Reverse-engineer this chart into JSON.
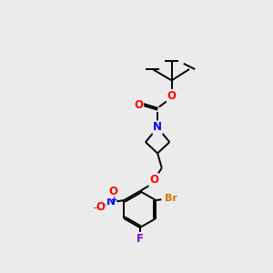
{
  "background_color": "#ebebeb",
  "bond_color": "#000000",
  "atom_colors": {
    "O": "#ff0000",
    "N": "#0000ff",
    "F": "#8800cc",
    "Br": "#cc7700",
    "C": "#000000",
    "minus": "#ff0000",
    "plus": "#0000ff"
  },
  "figsize": [
    3.0,
    3.0
  ],
  "dpi": 100
}
